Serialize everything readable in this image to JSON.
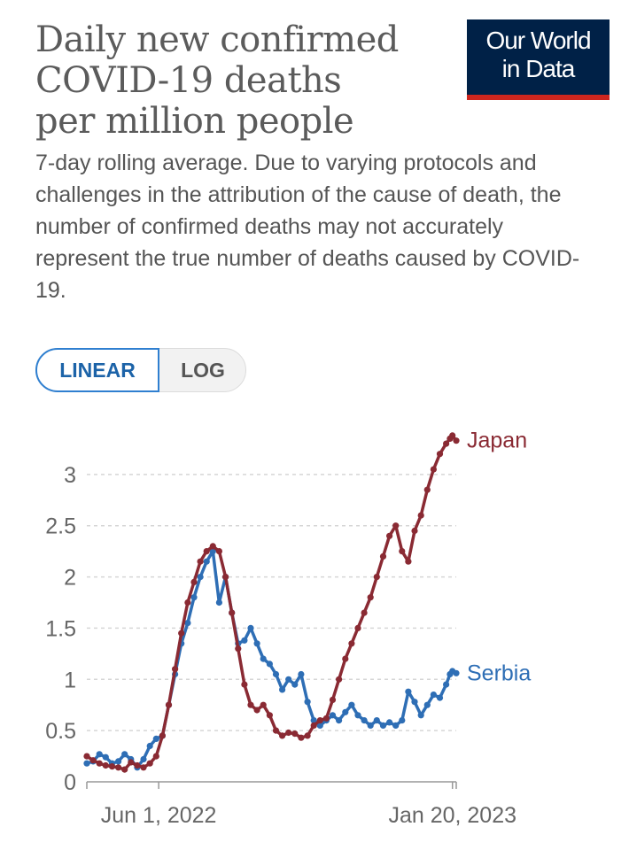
{
  "header": {
    "title_lines": [
      "Daily new confirmed",
      "COVID-19 deaths",
      "per million people"
    ],
    "logo_line1": "Our World",
    "logo_line2": "in Data",
    "subtitle": "7-day rolling average. Due to varying protocols and challenges in the attribution of the cause of death, the number of confirmed deaths may not accurately represent the true number of deaths caused by COVID-19."
  },
  "scale_toggle": {
    "linear_label": "LINEAR",
    "log_label": "LOG",
    "selected": "LINEAR"
  },
  "colors": {
    "japan": "#8a2a33",
    "serbia": "#2e6eb5",
    "grid": "#d6d6d6",
    "axis": "#999999",
    "logo_bg": "#002147",
    "logo_bar": "#ce261e"
  },
  "chart_data": {
    "type": "line",
    "title": "Daily new confirmed COVID-19 deaths per million people",
    "xlabel": "",
    "ylabel": "",
    "ylim": [
      0,
      3.5
    ],
    "yticks": [
      0,
      0.5,
      1,
      1.5,
      2,
      2.5,
      3
    ],
    "ytick_labels": [
      "0",
      "0.5",
      "1",
      "1.5",
      "2",
      "2.5",
      "3"
    ],
    "xrange_days": [
      0,
      293
    ],
    "xticks": [
      {
        "day": 57,
        "label": "Jun 1, 2022"
      },
      {
        "day": 290,
        "label": "Jan 20, 2023"
      }
    ],
    "x_units": "days since 2022-04-05",
    "grid": true,
    "series": [
      {
        "name": "Japan",
        "label": "Japan",
        "x": [
          0,
          5,
          10,
          15,
          20,
          25,
          30,
          35,
          40,
          45,
          50,
          55,
          60,
          65,
          70,
          75,
          80,
          85,
          90,
          95,
          100,
          105,
          110,
          115,
          120,
          125,
          130,
          135,
          140,
          145,
          150,
          155,
          160,
          165,
          170,
          175,
          180,
          185,
          190,
          195,
          200,
          205,
          210,
          215,
          220,
          225,
          230,
          235,
          240,
          245,
          250,
          255,
          260,
          265,
          270,
          275,
          280,
          285,
          288,
          290,
          293
        ],
        "values": [
          0.25,
          0.21,
          0.18,
          0.16,
          0.15,
          0.14,
          0.12,
          0.19,
          0.16,
          0.14,
          0.18,
          0.25,
          0.45,
          0.75,
          1.1,
          1.45,
          1.75,
          1.95,
          2.15,
          2.25,
          2.3,
          2.25,
          2.0,
          1.65,
          1.3,
          0.95,
          0.75,
          0.7,
          0.75,
          0.65,
          0.5,
          0.45,
          0.48,
          0.47,
          0.43,
          0.45,
          0.55,
          0.6,
          0.62,
          0.8,
          1.0,
          1.2,
          1.35,
          1.5,
          1.65,
          1.8,
          2.0,
          2.2,
          2.4,
          2.5,
          2.25,
          2.15,
          2.45,
          2.6,
          2.85,
          3.05,
          3.2,
          3.3,
          3.35,
          3.38,
          3.33
        ]
      },
      {
        "name": "Serbia",
        "label": "Serbia",
        "x": [
          0,
          5,
          10,
          15,
          20,
          25,
          30,
          35,
          40,
          45,
          50,
          55,
          60,
          65,
          70,
          75,
          80,
          85,
          90,
          95,
          100,
          105,
          110,
          115,
          120,
          125,
          130,
          135,
          140,
          145,
          150,
          155,
          160,
          165,
          170,
          175,
          180,
          185,
          190,
          195,
          200,
          205,
          210,
          215,
          220,
          225,
          230,
          235,
          240,
          245,
          250,
          255,
          260,
          265,
          270,
          275,
          280,
          285,
          288,
          290,
          293
        ],
        "values": [
          0.18,
          0.2,
          0.27,
          0.24,
          0.18,
          0.2,
          0.27,
          0.22,
          0.14,
          0.22,
          0.35,
          0.42,
          0.45,
          0.75,
          1.05,
          1.35,
          1.55,
          1.8,
          2.0,
          2.15,
          2.25,
          1.75,
          2.0,
          1.65,
          1.35,
          1.38,
          1.5,
          1.35,
          1.2,
          1.15,
          1.05,
          0.9,
          1.0,
          0.95,
          1.05,
          0.78,
          0.6,
          0.55,
          0.6,
          0.65,
          0.6,
          0.68,
          0.75,
          0.65,
          0.6,
          0.55,
          0.6,
          0.55,
          0.58,
          0.55,
          0.6,
          0.88,
          0.78,
          0.65,
          0.75,
          0.85,
          0.82,
          0.95,
          1.05,
          1.08,
          1.06
        ]
      }
    ]
  }
}
